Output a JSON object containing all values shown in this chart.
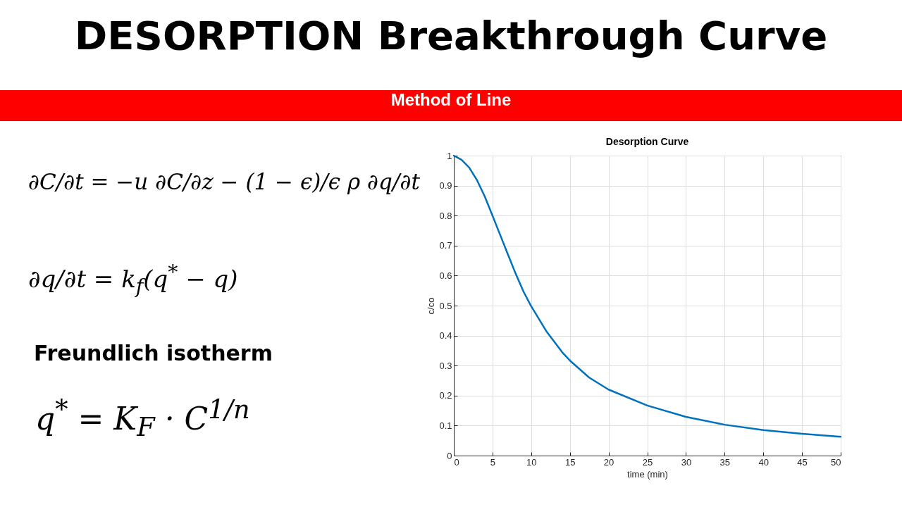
{
  "chart_data": {
    "type": "line",
    "title": "Desorption Curve",
    "xlabel": "time (min)",
    "ylabel": "c/co",
    "annotations": [
      "DESORPTION Breakthrough Curve",
      "Method of Line",
      "∂C/∂t = −u ∂C/∂z − (1 − ϵ)/ϵ ρ ∂q/∂t",
      "∂q/∂t = k$_{f}$(q$^{*}$ − q)",
      "Freundlich isotherm",
      "q$^{*}$ = K$_{F}$ · C$^{1/n}$"
    ],
    "x": [
      0,
      1,
      2,
      3,
      4,
      5,
      6,
      7,
      8,
      9,
      10,
      12,
      14,
      15,
      17.5,
      20,
      25,
      30,
      35,
      40,
      45,
      50
    ],
    "series": [
      {
        "color": "#0072bd",
        "values": [
          1.0,
          0.986,
          0.96,
          0.918,
          0.864,
          0.8,
          0.735,
          0.67,
          0.606,
          0.547,
          0.498,
          0.413,
          0.345,
          0.317,
          0.26,
          0.22,
          0.167,
          0.129,
          0.103,
          0.085,
          0.073,
          0.063
        ]
      }
    ],
    "xlim": [
      0,
      50
    ],
    "xticks": [
      0,
      5,
      10,
      15,
      20,
      25,
      30,
      35,
      40,
      45,
      50
    ],
    "ylim": [
      0,
      1
    ],
    "yticks": [
      0,
      0.1,
      0.2,
      0.3,
      0.4,
      0.5,
      0.6,
      0.7,
      0.8,
      0.9,
      1
    ],
    "grid": true,
    "legend": false
  }
}
